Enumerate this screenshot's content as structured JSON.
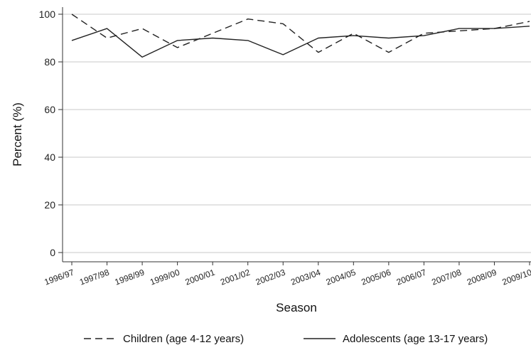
{
  "chart_data": {
    "type": "line",
    "xlabel": "Season",
    "ylabel": "Percent (%)",
    "ylim": [
      0,
      100
    ],
    "yticks": [
      0,
      20,
      40,
      60,
      80,
      100
    ],
    "grid": true,
    "legend_position": "bottom",
    "categories": [
      "1996/97",
      "1997/98",
      "1998/99",
      "1999/00",
      "2000/01",
      "2001/02",
      "2002/03",
      "2003/04",
      "2004/05",
      "2005/06",
      "2006/07",
      "2007/08",
      "2008/09",
      "2009/10"
    ],
    "series": [
      {
        "name": "Children (age 4-12 years)",
        "style": "dashed",
        "values": [
          100,
          90,
          94,
          86,
          92,
          98,
          96,
          84,
          92,
          84,
          92,
          93,
          94,
          97
        ]
      },
      {
        "name": "Adolescents (age 13-17 years)",
        "style": "solid",
        "values": [
          89,
          94,
          82,
          89,
          90,
          89,
          83,
          90,
          91,
          90,
          91,
          94,
          94,
          95
        ]
      }
    ]
  }
}
